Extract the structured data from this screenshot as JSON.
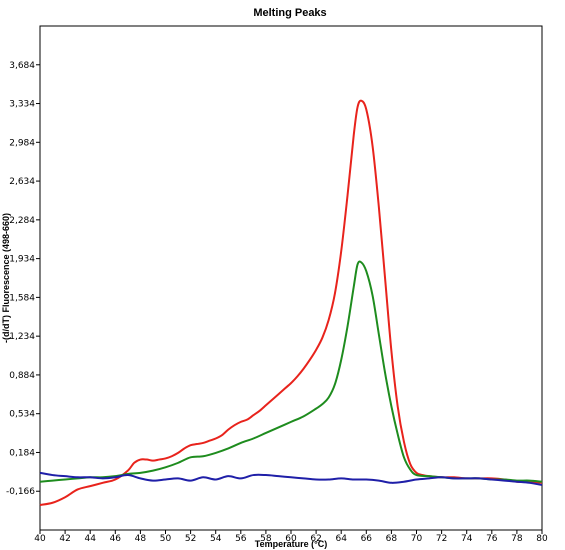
{
  "chart_data": {
    "type": "line",
    "title": "Melting Peaks",
    "xlabel": "Temperature (°C)",
    "ylabel": "-(d/dT) Fluorescence (498-660)",
    "xlim": [
      40,
      80
    ],
    "ylim": [
      -0.516,
      4.034
    ],
    "x_ticks": [
      40,
      42,
      44,
      46,
      48,
      50,
      52,
      54,
      56,
      58,
      60,
      62,
      64,
      66,
      68,
      70,
      72,
      74,
      76,
      78,
      80
    ],
    "y_ticks": [
      -0.166,
      0.184,
      0.534,
      0.884,
      1.234,
      1.584,
      1.934,
      2.284,
      2.634,
      2.984,
      3.334,
      3.684
    ],
    "y_tick_labels": [
      "-0,166",
      "0,184",
      "0,534",
      "0,884",
      "1,234",
      "1,584",
      "1,934",
      "2,284",
      "2,634",
      "2,984",
      "3,334",
      "3,684"
    ],
    "grid": false,
    "series": [
      {
        "color": "#e8231c",
        "x": [
          40,
          41,
          42,
          43,
          44,
          45,
          46,
          47,
          47.5,
          48,
          48.5,
          49,
          49.5,
          50,
          50.5,
          51,
          51.5,
          52,
          52.5,
          53,
          53.5,
          54,
          54.5,
          55,
          55.5,
          56,
          56.5,
          57,
          57.5,
          58,
          58.5,
          59,
          59.5,
          60,
          60.5,
          61,
          61.5,
          62,
          62.5,
          63,
          63.5,
          64,
          64.5,
          65,
          65.3,
          65.6,
          66,
          66.5,
          67,
          67.5,
          68,
          68.5,
          69,
          69.5,
          70,
          70.5,
          71,
          72,
          73,
          74,
          75,
          76,
          77,
          78,
          79,
          80
        ],
        "values": [
          -0.29,
          -0.27,
          -0.22,
          -0.15,
          -0.12,
          -0.09,
          -0.06,
          0.02,
          0.09,
          0.12,
          0.12,
          0.11,
          0.12,
          0.13,
          0.15,
          0.18,
          0.22,
          0.25,
          0.26,
          0.27,
          0.29,
          0.31,
          0.34,
          0.39,
          0.43,
          0.46,
          0.48,
          0.52,
          0.56,
          0.61,
          0.66,
          0.71,
          0.76,
          0.81,
          0.87,
          0.94,
          1.02,
          1.11,
          1.22,
          1.38,
          1.62,
          2.0,
          2.5,
          3.05,
          3.3,
          3.36,
          3.28,
          2.95,
          2.4,
          1.75,
          1.1,
          0.6,
          0.28,
          0.08,
          0.0,
          -0.02,
          -0.03,
          -0.04,
          -0.04,
          -0.05,
          -0.05,
          -0.05,
          -0.06,
          -0.08,
          -0.08,
          -0.09
        ]
      },
      {
        "color": "#1e8c1e",
        "x": [
          40,
          41,
          42,
          43,
          44,
          45,
          46,
          47,
          48,
          49,
          50,
          51,
          52,
          53,
          54,
          55,
          56,
          57,
          58,
          59,
          60,
          61,
          62,
          62.5,
          63,
          63.5,
          64,
          64.5,
          65,
          65.3,
          65.6,
          66,
          66.5,
          67,
          67.5,
          68,
          68.5,
          69,
          69.5,
          70,
          71,
          72,
          73,
          74,
          75,
          76,
          77,
          78,
          79,
          80
        ],
        "values": [
          -0.08,
          -0.07,
          -0.06,
          -0.05,
          -0.04,
          -0.04,
          -0.03,
          -0.01,
          0.0,
          0.02,
          0.05,
          0.09,
          0.14,
          0.15,
          0.18,
          0.22,
          0.27,
          0.31,
          0.36,
          0.41,
          0.46,
          0.51,
          0.58,
          0.62,
          0.68,
          0.8,
          1.02,
          1.32,
          1.68,
          1.88,
          1.9,
          1.82,
          1.6,
          1.25,
          0.9,
          0.6,
          0.35,
          0.14,
          0.03,
          -0.02,
          -0.03,
          -0.04,
          -0.05,
          -0.05,
          -0.05,
          -0.06,
          -0.06,
          -0.07,
          -0.07,
          -0.08
        ]
      },
      {
        "color": "#1f1fa8",
        "x": [
          40,
          41,
          42,
          43,
          44,
          45,
          46,
          47,
          48,
          49,
          50,
          51,
          52,
          53,
          54,
          55,
          56,
          57,
          58,
          59,
          60,
          61,
          62,
          63,
          64,
          65,
          66,
          67,
          68,
          69,
          70,
          71,
          72,
          73,
          74,
          75,
          76,
          77,
          78,
          79,
          80
        ],
        "values": [
          0.0,
          -0.02,
          -0.03,
          -0.04,
          -0.04,
          -0.05,
          -0.04,
          -0.02,
          -0.05,
          -0.07,
          -0.06,
          -0.05,
          -0.07,
          -0.04,
          -0.06,
          -0.03,
          -0.05,
          -0.02,
          -0.02,
          -0.03,
          -0.04,
          -0.05,
          -0.06,
          -0.06,
          -0.05,
          -0.06,
          -0.06,
          -0.07,
          -0.09,
          -0.08,
          -0.06,
          -0.05,
          -0.04,
          -0.05,
          -0.05,
          -0.05,
          -0.06,
          -0.07,
          -0.08,
          -0.09,
          -0.11
        ]
      }
    ]
  }
}
